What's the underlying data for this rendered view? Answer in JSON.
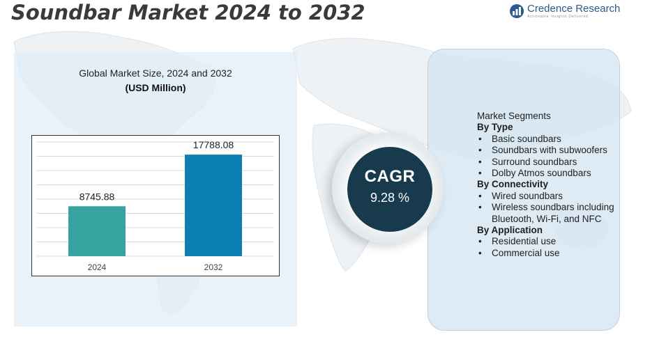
{
  "header": {
    "title": "Soundbar Market 2024 to 2032",
    "brand_name": "Credence Research",
    "brand_tagline": "Actionable Insights Delivered"
  },
  "chart_data": {
    "type": "bar",
    "title": "Global Market Size,  2024 and 2032",
    "unit": "(USD Million)",
    "categories": [
      "2024",
      "2032"
    ],
    "values": [
      8745.88,
      17788.08
    ],
    "data_labels": [
      "8745.88",
      "17788.08"
    ],
    "colors": [
      "#37a3a1",
      "#0b7fb0"
    ],
    "ylim": [
      0,
      20000
    ],
    "grid": true,
    "xlabel": "",
    "ylabel": ""
  },
  "cagr": {
    "label": "CAGR",
    "value": "9.28 %"
  },
  "segments": {
    "heading": "Market Segments",
    "groups": [
      {
        "title": "By Type",
        "items": [
          "Basic soundbars",
          "Soundbars with subwoofers",
          "Surround soundbars",
          "Dolby Atmos soundbars"
        ]
      },
      {
        "title": "By Connectivity",
        "items": [
          "Wired soundbars",
          "Wireless  soundbars including Bluetooth, Wi-Fi, and NFC"
        ]
      },
      {
        "title": "By Application",
        "items": [
          "Residential use",
          "Commercial use"
        ]
      }
    ]
  },
  "colors": {
    "panel_left": "#e0ecf6",
    "panel_right": "#d5e6f2",
    "cagr_circle": "#173b4d",
    "brand": "#2a5b8c"
  },
  "icons": {
    "logo": "bar-chart-logo-icon",
    "background": "world-map-icon"
  }
}
